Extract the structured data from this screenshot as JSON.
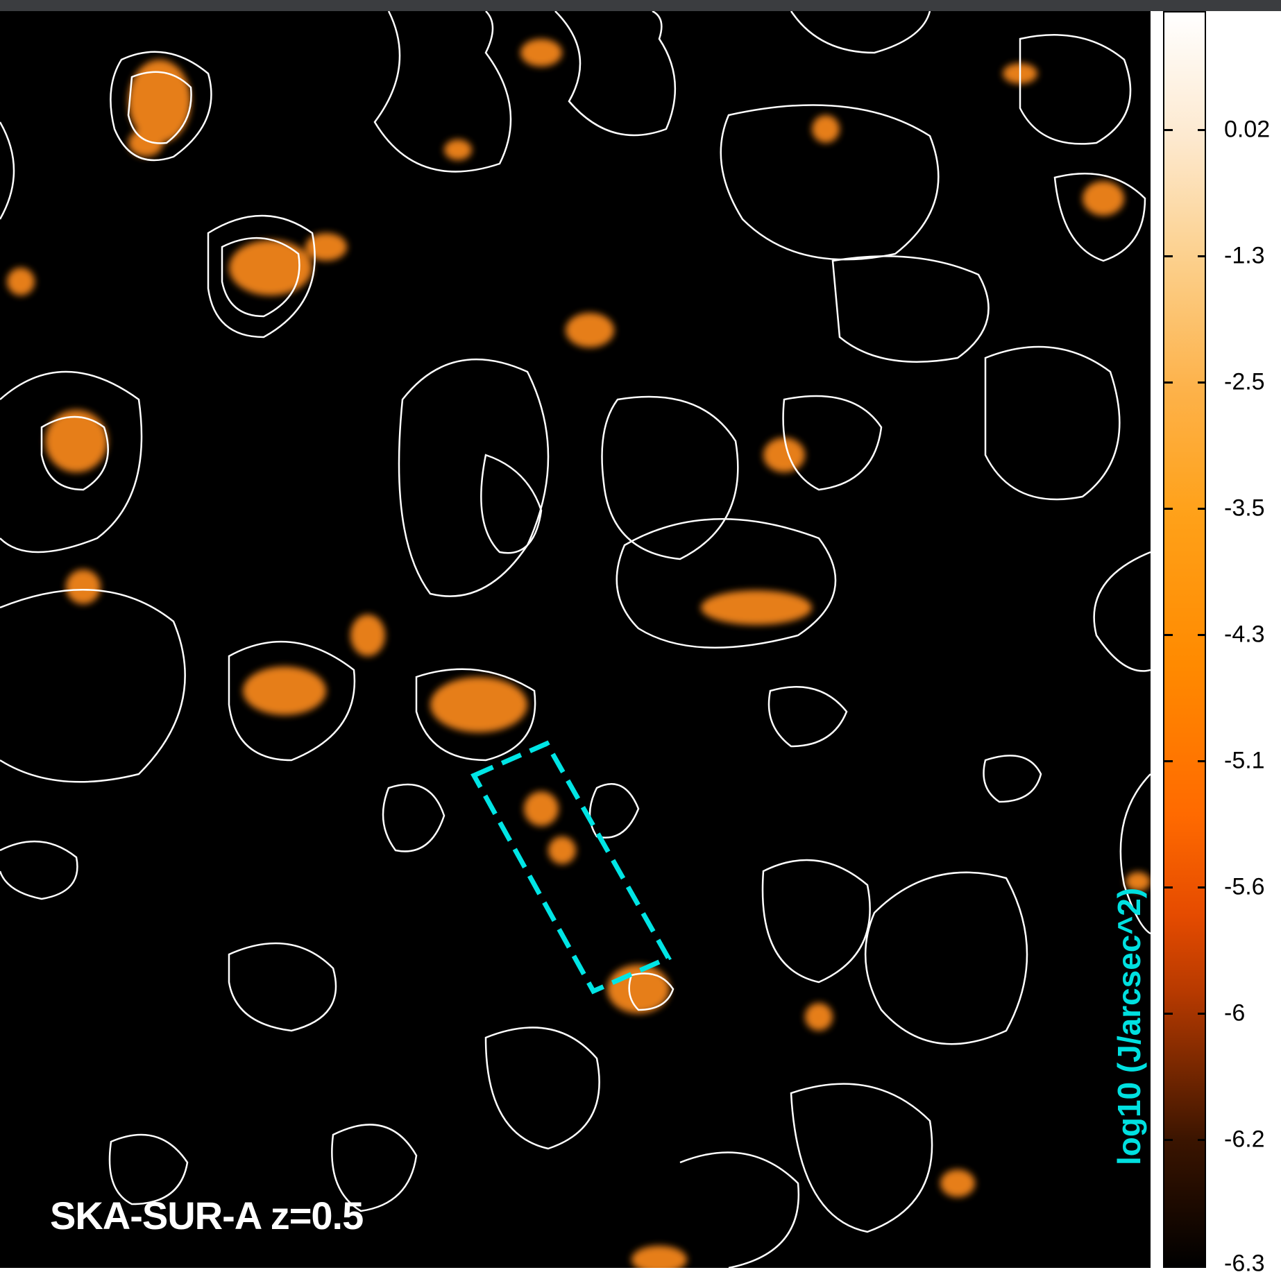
{
  "image": {
    "label": "SKA-SUR-A z=0.5",
    "description_colors": {
      "background": "#000000",
      "emission": "#ff8c1a",
      "contours": "#ffffff",
      "selection_box": "#00e5e5"
    }
  },
  "colorbar": {
    "title": "log10 (J/arcsec^2)",
    "ticks": [
      "0.02",
      "-1.3",
      "-2.5",
      "-3.5",
      "-4.3",
      "-5.1",
      "-5.6",
      "-6",
      "-6.2",
      "-6.3"
    ]
  }
}
